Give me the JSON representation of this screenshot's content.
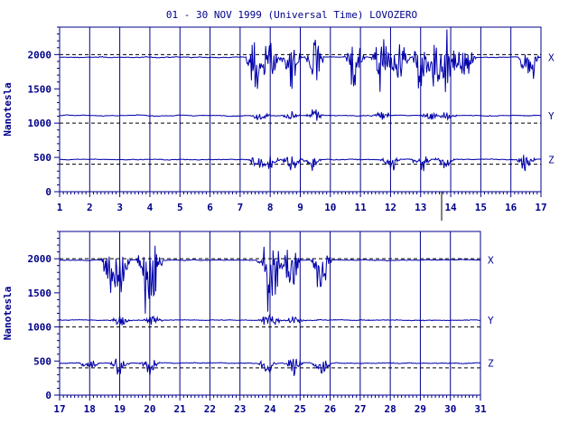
{
  "title": "01 - 30 NOV 1999 (Universal Time) LOVOZERO",
  "colors": {
    "trace": "#0000aa",
    "axis": "#00008b",
    "baseline": "#000000",
    "background": "#ffffff"
  },
  "chart_data": [
    {
      "type": "line",
      "panel": "top",
      "ylabel": "Nanotesla",
      "ylim": [
        0,
        2400
      ],
      "y_ticks": [
        0,
        500,
        1000,
        1500,
        2000
      ],
      "y_tick_labels": [
        "0",
        "500",
        "1000",
        "1500",
        "2000"
      ],
      "xlim": [
        1,
        17
      ],
      "x_ticks": [
        1,
        2,
        3,
        4,
        5,
        6,
        7,
        8,
        9,
        10,
        11,
        12,
        13,
        14,
        15,
        16,
        17
      ],
      "x_tick_labels": [
        "1",
        "2",
        "3",
        "4",
        "5",
        "6",
        "7",
        "8",
        "9",
        "10",
        "11",
        "12",
        "13",
        "14",
        "15",
        "16",
        "17"
      ],
      "vertical_gridlines": true,
      "series": [
        {
          "name": "X",
          "baseline": 2000,
          "level": 1960,
          "disturbed_days": [
            7.5,
            8,
            8.7,
            9.5,
            10.8,
            11.7,
            12.3,
            13,
            13.5,
            13.9,
            14.5,
            16.6
          ]
        },
        {
          "name": "Y",
          "baseline": 1000,
          "level": 1110,
          "disturbed_days": [
            7.7,
            8.7,
            9.5,
            11.7,
            13.3,
            13.9
          ]
        },
        {
          "name": "Z",
          "baseline": 400,
          "level": 470,
          "disturbed_days": [
            7.6,
            8,
            8.7,
            9.4,
            12,
            13,
            13.8,
            16.5
          ]
        }
      ]
    },
    {
      "type": "line",
      "panel": "bottom",
      "ylabel": "Nanotesla",
      "ylim": [
        0,
        2400
      ],
      "y_ticks": [
        0,
        500,
        1000,
        1500,
        2000
      ],
      "y_tick_labels": [
        "0",
        "500",
        "1000",
        "1500",
        "2000"
      ],
      "xlim": [
        17,
        31
      ],
      "x_ticks": [
        17,
        18,
        19,
        20,
        21,
        22,
        23,
        24,
        25,
        26,
        27,
        28,
        29,
        30,
        31
      ],
      "x_tick_labels": [
        "17",
        "18",
        "19",
        "20",
        "21",
        "22",
        "23",
        "24",
        "25",
        "26",
        "27",
        "28",
        "29",
        "30",
        "31"
      ],
      "vertical_gridlines": true,
      "series": [
        {
          "name": "X",
          "baseline": 2000,
          "level": 1980,
          "disturbed_days": [
            18.7,
            19,
            19.9,
            20.1,
            23.9,
            24.1,
            24.7,
            25.7
          ]
        },
        {
          "name": "Y",
          "baseline": 1000,
          "level": 1100,
          "disturbed_days": [
            19,
            20.1,
            23.9,
            24.1,
            24.8
          ]
        },
        {
          "name": "Z",
          "baseline": 400,
          "level": 470,
          "disturbed_days": [
            18,
            19,
            20,
            23.9,
            24.8,
            25.7
          ]
        }
      ]
    }
  ]
}
